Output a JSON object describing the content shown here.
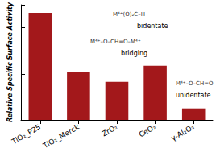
{
  "chart_data": {
    "type": "bar",
    "y_label": "Relative Specific Surface Activity",
    "categories": [
      "TiO₂_P25",
      "TiO₂_Merck",
      "ZrO₂",
      "CeO₂",
      "γ-Al₂O₃"
    ],
    "values": [
      9.3,
      4.2,
      3.3,
      4.7,
      1.0
    ],
    "color": "#a3181b",
    "ylim": [
      0,
      10
    ],
    "yticks": [
      0,
      2,
      4,
      6,
      8,
      10
    ],
    "grid": false,
    "tick_labels": "x",
    "annotations": [
      {
        "formula": "M⁴⁺(O)₂C–H",
        "label": "bidentate"
      },
      {
        "formula": "M⁴⁺–O–CH=O–M⁴⁺",
        "label": "bridging"
      },
      {
        "formula": "M⁴⁺–O–CH=O",
        "label": "unidentate"
      }
    ]
  }
}
